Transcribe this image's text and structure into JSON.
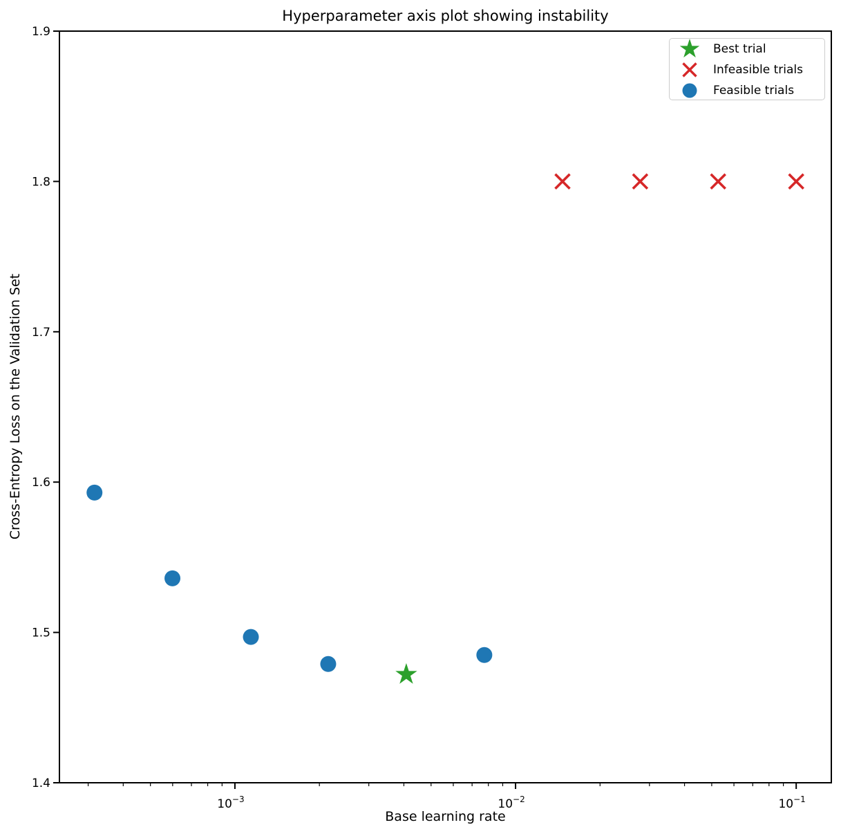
{
  "figure": {
    "title": "Hyperparameter axis plot showing instability",
    "xlabel": "Base learning rate",
    "ylabel": "Cross-Entropy Loss on the Validation Set"
  },
  "legend": {
    "items": [
      {
        "label": "Best trial",
        "marker": "star",
        "color": "#2ca02c"
      },
      {
        "label": "Infeasible trials",
        "marker": "x",
        "color": "#d62728"
      },
      {
        "label": "Feasible trials",
        "marker": "circle",
        "color": "#1f77b4"
      }
    ]
  },
  "chart_data": {
    "type": "scatter",
    "title": "Hyperparameter axis plot showing instability",
    "xlabel": "Base learning rate",
    "ylabel": "Cross-Entropy Loss on the Validation Set",
    "x_scale": "log",
    "y_scale": "linear",
    "xlim": [
      0.000237,
      0.1334
    ],
    "ylim": [
      1.4,
      1.9
    ],
    "x_major_ticks": [
      0.001,
      0.01,
      0.1
    ],
    "x_major_tick_exponents": [
      "−3",
      "−2",
      "−1"
    ],
    "y_ticks": [
      1.4,
      1.5,
      1.6,
      1.7,
      1.8,
      1.9
    ],
    "grid": false,
    "legend_position": "upper right",
    "series": [
      {
        "name": "Feasible trials",
        "marker": "circle",
        "color": "#1f77b4",
        "points": [
          [
            0.000316,
            1.593
          ],
          [
            0.000599,
            1.536
          ],
          [
            0.00114,
            1.497
          ],
          [
            0.00215,
            1.479
          ],
          [
            0.00774,
            1.485
          ]
        ]
      },
      {
        "name": "Best trial",
        "marker": "star",
        "color": "#2ca02c",
        "points": [
          [
            0.00408,
            1.472
          ]
        ]
      },
      {
        "name": "Infeasible trials",
        "marker": "x",
        "color": "#d62728",
        "points": [
          [
            0.0147,
            1.8
          ],
          [
            0.0278,
            1.8
          ],
          [
            0.0527,
            1.8
          ],
          [
            0.1,
            1.8
          ]
        ]
      }
    ]
  }
}
